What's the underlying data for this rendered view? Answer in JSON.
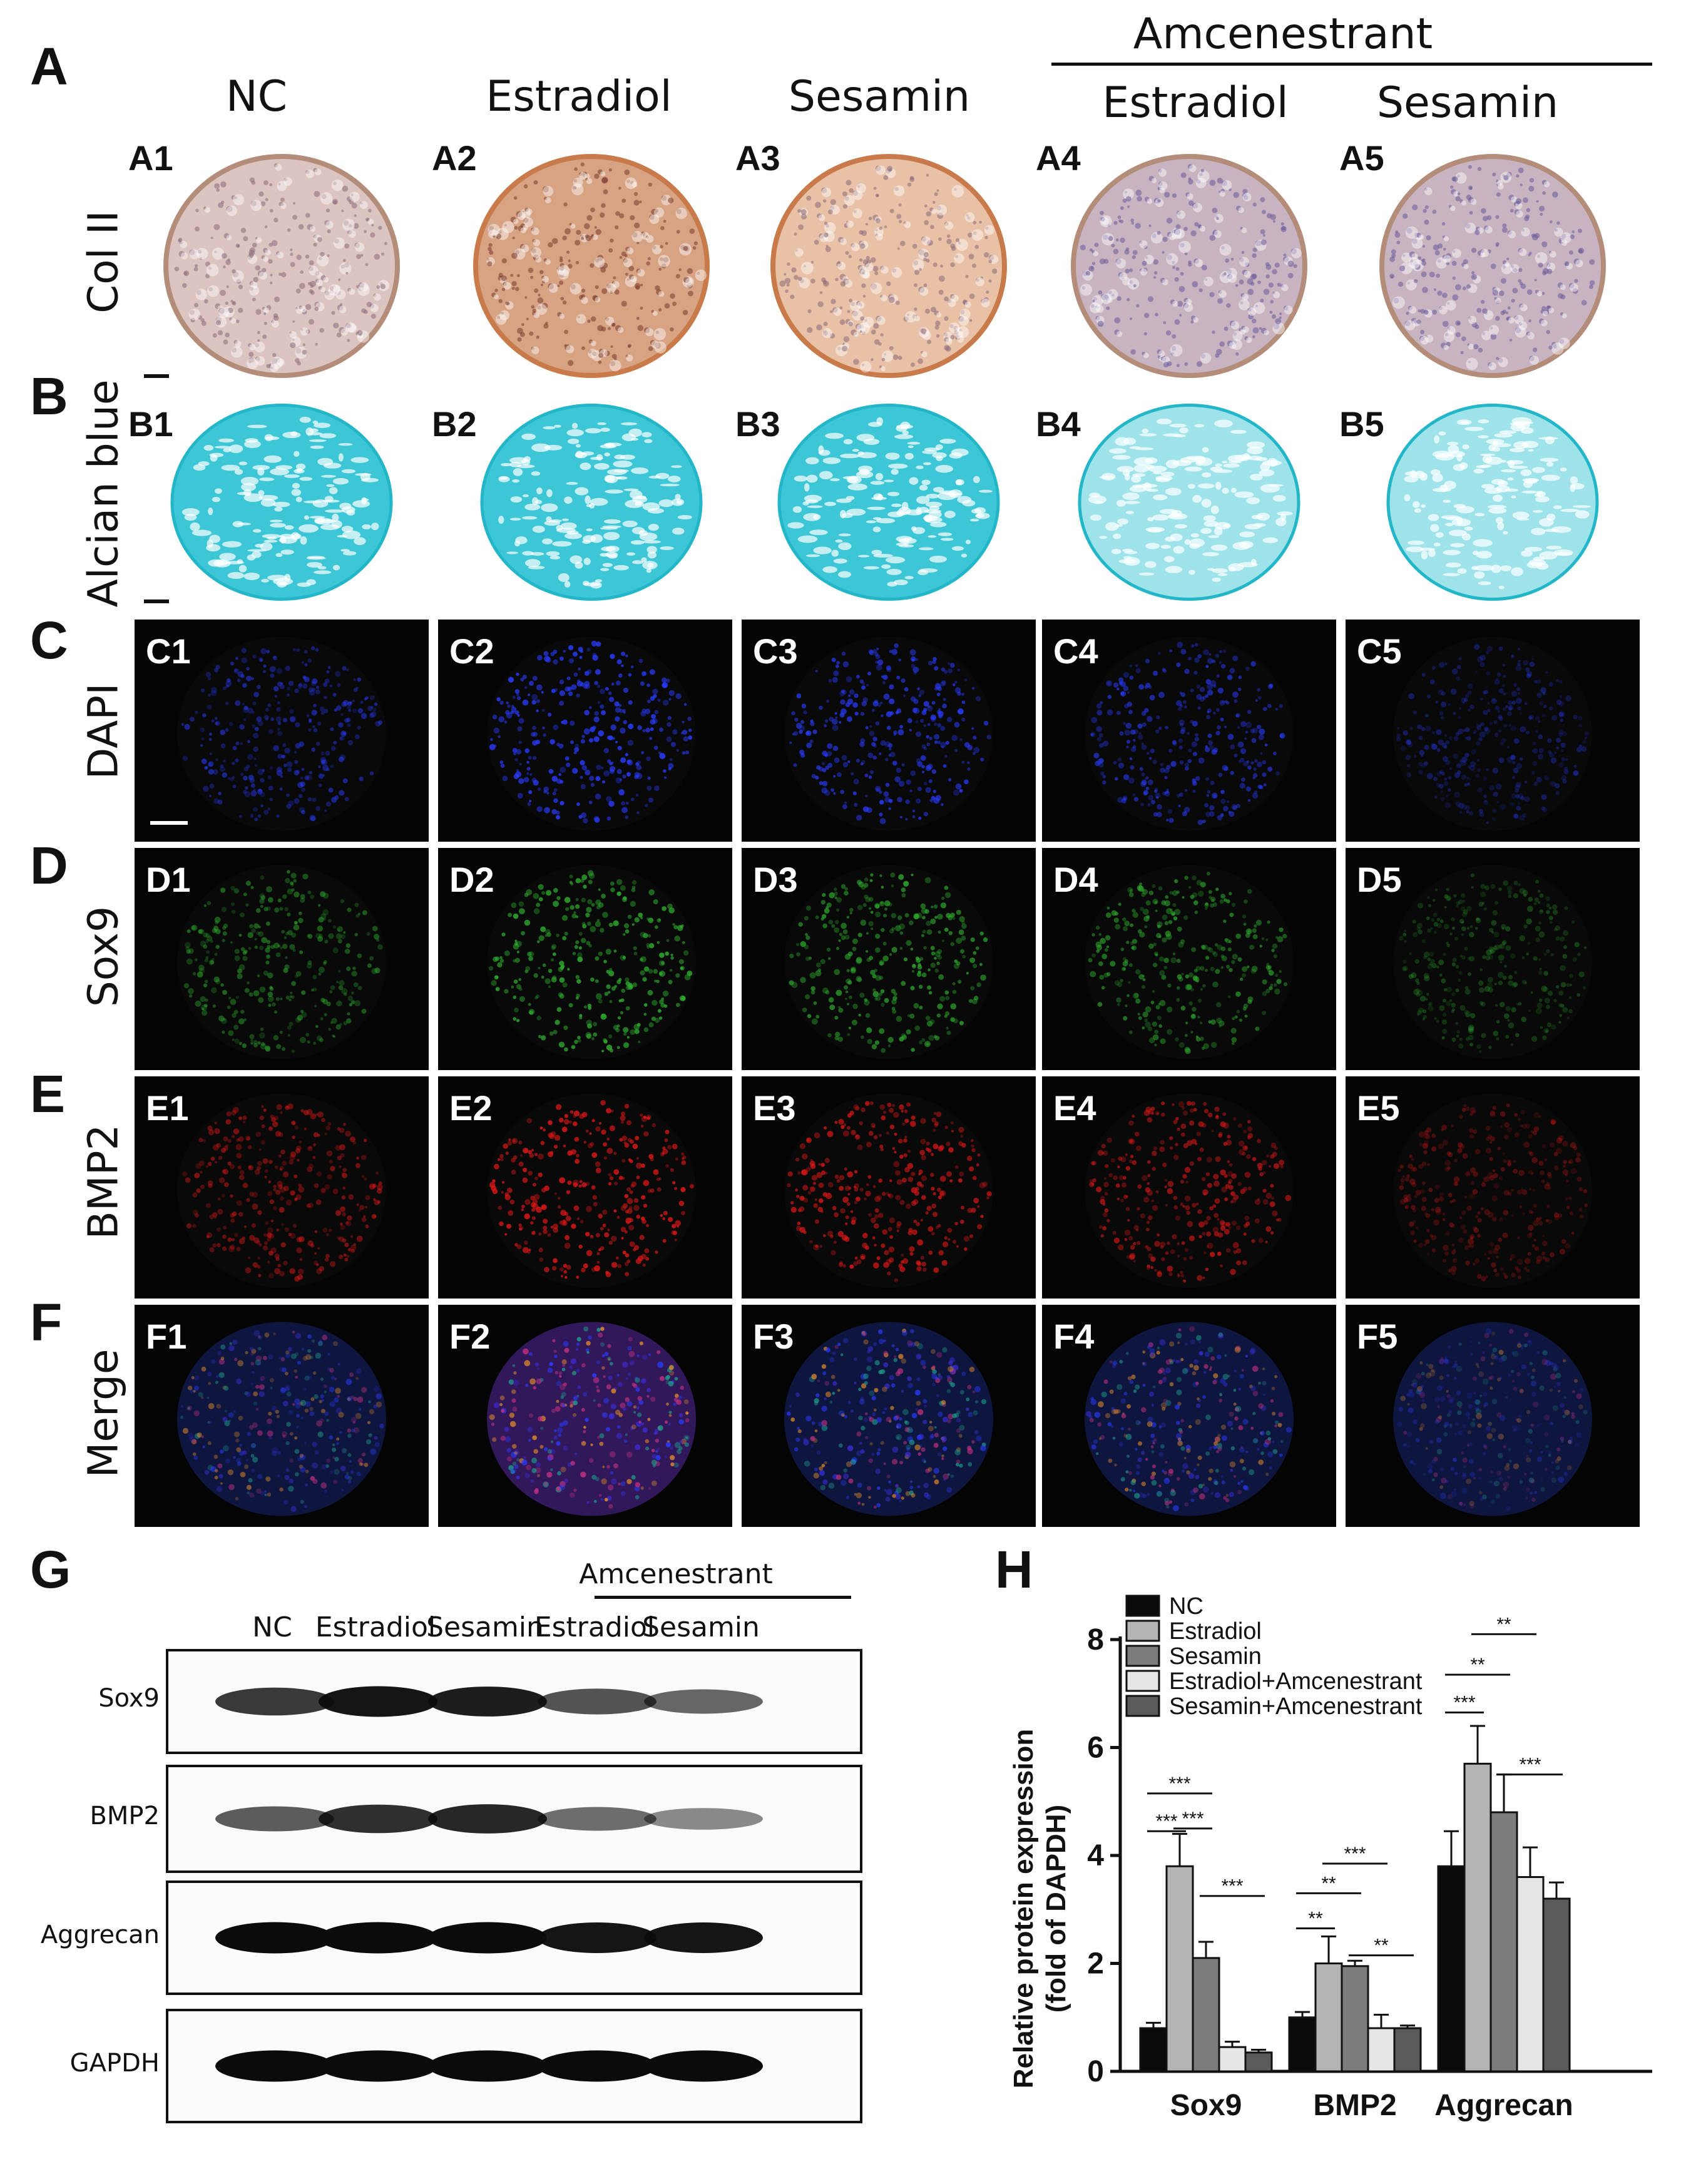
{
  "panels": {
    "A": "A",
    "B": "B",
    "C": "C",
    "D": "D",
    "E": "E",
    "F": "F",
    "G": "G",
    "H": "H"
  },
  "header": {
    "group_title": "Amcenestrant",
    "columns": [
      "NC",
      "Estradiol",
      "Sesamin",
      "Estradiol",
      "Sesamin"
    ]
  },
  "rows": [
    {
      "key": "A",
      "label": "Col II",
      "subs": [
        "A1",
        "A2",
        "A3",
        "A4",
        "A5"
      ],
      "stain": "ihc"
    },
    {
      "key": "B",
      "label": "Alcian blue",
      "subs": [
        "B1",
        "B2",
        "B3",
        "B4",
        "B5"
      ],
      "stain": "alcian"
    },
    {
      "key": "C",
      "label": "DAPI",
      "subs": [
        "C1",
        "C2",
        "C3",
        "C4",
        "C5"
      ],
      "stain": "#2a3cff"
    },
    {
      "key": "D",
      "label": "Sox9",
      "subs": [
        "D1",
        "D2",
        "D3",
        "D4",
        "D5"
      ],
      "stain": "#2fae2f"
    },
    {
      "key": "E",
      "label": "BMP2",
      "subs": [
        "E1",
        "E2",
        "E3",
        "E4",
        "E5"
      ],
      "stain": "#e01818"
    },
    {
      "key": "F",
      "label": "Merge",
      "subs": [
        "F1",
        "F2",
        "F3",
        "F4",
        "F5"
      ],
      "stain": "merge"
    }
  ],
  "western": {
    "group_title": "Amcenestrant",
    "lanes": [
      "NC",
      "Estradiol",
      "Sesamin",
      "Estradiol",
      "Sesamin"
    ],
    "blots": [
      {
        "name": "Sox9",
        "intensity": [
          0.75,
          0.95,
          0.9,
          0.6,
          0.5
        ]
      },
      {
        "name": "BMP2",
        "intensity": [
          0.55,
          0.8,
          0.85,
          0.45,
          0.3
        ]
      },
      {
        "name": "Aggrecan",
        "intensity": [
          1.0,
          1.0,
          1.0,
          0.95,
          0.95
        ]
      },
      {
        "name": "GAPDH",
        "intensity": [
          1.0,
          1.0,
          1.0,
          1.0,
          1.0
        ]
      }
    ]
  },
  "chart_data": {
    "type": "bar",
    "categories": [
      "Sox9",
      "BMP2",
      "Aggrecan"
    ],
    "ylabel": "Relative protein expression (fold of DAPDH)",
    "ylabel_lines": [
      "Relative protein expression",
      "(fold of DAPDH)"
    ],
    "ylim": [
      0,
      8
    ],
    "yticks": [
      0,
      2,
      4,
      6,
      8
    ],
    "legend_position": "top-left",
    "series": [
      {
        "name": "NC",
        "color": "#0a0a0a",
        "values": [
          0.8,
          1.0,
          3.8
        ],
        "errors": [
          0.1,
          0.1,
          0.65
        ]
      },
      {
        "name": "Estradiol",
        "color": "#b4b4b4",
        "values": [
          3.8,
          2.0,
          5.7
        ],
        "errors": [
          0.6,
          0.5,
          0.7
        ]
      },
      {
        "name": "Sesamin",
        "color": "#7c7c7c",
        "values": [
          2.1,
          1.95,
          4.8
        ],
        "errors": [
          0.3,
          0.1,
          0.7
        ]
      },
      {
        "name": "Estradiol+Amcenestrant",
        "color": "#e6e6e6",
        "values": [
          0.45,
          0.8,
          3.6
        ],
        "errors": [
          0.1,
          0.25,
          0.55
        ]
      },
      {
        "name": "Sesamin+Amcenestrant",
        "color": "#5a5a5a",
        "values": [
          0.35,
          0.8,
          3.2
        ],
        "errors": [
          0.05,
          0.05,
          0.3
        ]
      }
    ],
    "significance": [
      {
        "text": "***",
        "category": 0,
        "from": 0,
        "to": 1,
        "y": 4.45
      },
      {
        "text": "***",
        "category": 0,
        "from": 0,
        "to": 2,
        "y": 5.15
      },
      {
        "text": "***",
        "category": 0,
        "from": 1,
        "to": 2,
        "y": 4.5
      },
      {
        "text": "***",
        "category": 0,
        "from": 2,
        "to": 4,
        "y": 3.25
      },
      {
        "text": "**",
        "category": 1,
        "from": 0,
        "to": 1,
        "y": 2.65
      },
      {
        "text": "**",
        "category": 1,
        "from": 0,
        "to": 2,
        "y": 3.3
      },
      {
        "text": "***",
        "category": 1,
        "from": 1,
        "to": 3,
        "y": 3.85
      },
      {
        "text": "**",
        "category": 1,
        "from": 2,
        "to": 4,
        "y": 2.15
      },
      {
        "text": "***",
        "category": 2,
        "from": 0,
        "to": 1,
        "y": 6.65
      },
      {
        "text": "**",
        "category": 2,
        "from": 0,
        "to": 2,
        "y": 7.35
      },
      {
        "text": "**",
        "category": 2,
        "from": 1,
        "to": 3,
        "y": 8.1
      },
      {
        "text": "***",
        "category": 2,
        "from": 2,
        "to": 4,
        "y": 5.5
      }
    ]
  }
}
